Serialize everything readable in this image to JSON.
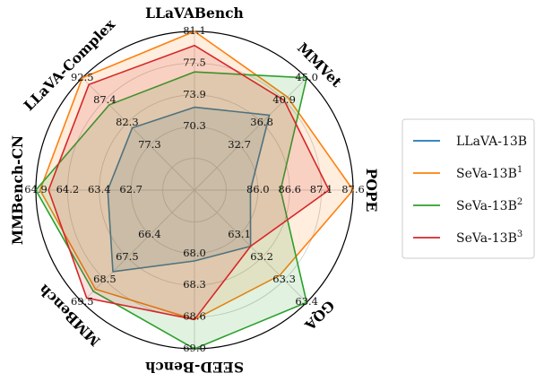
{
  "chart_data": {
    "type": "radar",
    "axes": [
      {
        "name": "LLaVABench",
        "ticks": [
          "70.3",
          "73.9",
          "77.5",
          "81.1"
        ],
        "min": 66.7,
        "max": 81.1
      },
      {
        "name": "MMVet",
        "ticks": [
          "32.7",
          "36.8",
          "40.9",
          "45.0"
        ],
        "min": 28.6,
        "max": 45.0
      },
      {
        "name": "POPE",
        "ticks": [
          "86.0",
          "86.6",
          "87.1",
          "87.6"
        ],
        "min": 85.5,
        "max": 87.6
      },
      {
        "name": "GQA",
        "ticks": [
          "63.1",
          "63.2",
          "63.3",
          "63.4"
        ],
        "min": 63.0,
        "max": 63.4
      },
      {
        "name": "SEED-Bench",
        "ticks": [
          "68.0",
          "68.3",
          "68.6",
          "69.0"
        ],
        "min": 67.7,
        "max": 69.0
      },
      {
        "name": "MMBench",
        "ticks": [
          "66.4",
          "67.5",
          "68.5",
          "69.5"
        ],
        "min": 65.4,
        "max": 69.5
      },
      {
        "name": "MMBench-CN",
        "ticks": [
          "62.7",
          "63.4",
          "64.2",
          "64.9"
        ],
        "min": 61.9,
        "max": 64.9
      },
      {
        "name": "LLaVA-Complex",
        "ticks": [
          "77.3",
          "82.3",
          "87.4",
          "92.5"
        ],
        "min": 72.2,
        "max": 92.5
      }
    ],
    "series": [
      {
        "name": "LLaVA-13B",
        "sup": "",
        "color": "#1f77b4",
        "values": [
          72.5,
          38.2,
          85.9,
          63.15,
          68.1,
          68.1,
          63.2,
          81.2
        ]
      },
      {
        "name": "SeVa-13B",
        "sup": "1",
        "color": "#ff7f0e",
        "values": [
          81.1,
          41.5,
          87.6,
          63.28,
          68.7,
          68.9,
          64.8,
          92.5
        ]
      },
      {
        "name": "SeVa-13B",
        "sup": "2",
        "color": "#2ca02c",
        "values": [
          76.5,
          45.0,
          86.4,
          63.4,
          69.0,
          69.0,
          64.9,
          86.4
        ]
      },
      {
        "name": "SeVa-13B",
        "sup": "3",
        "color": "#d62728",
        "values": [
          79.5,
          40.9,
          87.2,
          63.15,
          68.7,
          69.3,
          64.6,
          91.0
        ]
      }
    ],
    "grid": true,
    "legend_position": "right"
  }
}
